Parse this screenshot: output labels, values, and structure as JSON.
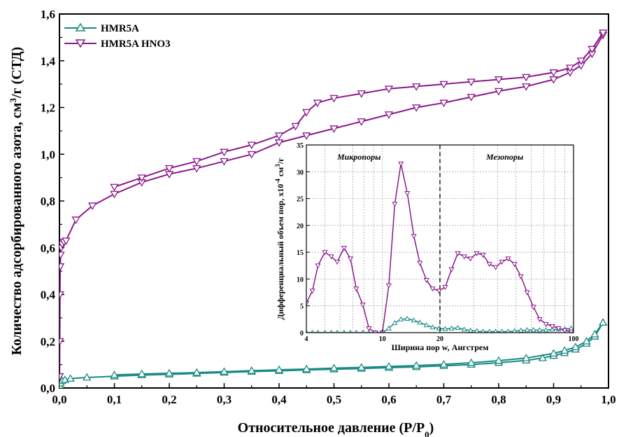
{
  "chart_data": [
    {
      "type": "line",
      "xlabel": "Относительное давление (P/P",
      "xlabel_sub": "0",
      "xlabel_end": ")",
      "ylabel": "Количество адсорбированного азота, см",
      "ylabel_sup": "3",
      "ylabel_end": "/г (СТД)",
      "xlim": [
        0,
        1.0
      ],
      "ylim": [
        0,
        1.6
      ],
      "xticks": [
        "0,0",
        "0,1",
        "0,2",
        "0,3",
        "0,4",
        "0,5",
        "0,6",
        "0,7",
        "0,8",
        "0,9",
        "1,0"
      ],
      "yticks": [
        "0,0",
        "0,2",
        "0,4",
        "0,6",
        "0,8",
        "1,0",
        "1,2",
        "1,4",
        "1,6"
      ],
      "legend_position": "top-left",
      "series": [
        {
          "name": "HMR5A",
          "color": "#1a8a84",
          "marker": "triangle-up",
          "branches": {
            "adsorption": [
              [
                0.0005,
                0.01
              ],
              [
                0.002,
                0.02
              ],
              [
                0.005,
                0.03
              ],
              [
                0.01,
                0.035
              ],
              [
                0.02,
                0.04
              ],
              [
                0.05,
                0.045
              ],
              [
                0.1,
                0.05
              ],
              [
                0.15,
                0.055
              ],
              [
                0.2,
                0.058
              ],
              [
                0.25,
                0.062
              ],
              [
                0.3,
                0.066
              ],
              [
                0.35,
                0.07
              ],
              [
                0.4,
                0.073
              ],
              [
                0.45,
                0.077
              ],
              [
                0.5,
                0.08
              ],
              [
                0.55,
                0.083
              ],
              [
                0.6,
                0.087
              ],
              [
                0.65,
                0.09
              ],
              [
                0.7,
                0.095
              ],
              [
                0.75,
                0.1
              ],
              [
                0.8,
                0.108
              ],
              [
                0.85,
                0.118
              ],
              [
                0.88,
                0.128
              ],
              [
                0.9,
                0.138
              ],
              [
                0.92,
                0.15
              ],
              [
                0.94,
                0.165
              ],
              [
                0.96,
                0.19
              ],
              [
                0.975,
                0.22
              ],
              [
                0.99,
                0.28
              ]
            ],
            "desorption": [
              [
                0.99,
                0.28
              ],
              [
                0.975,
                0.23
              ],
              [
                0.96,
                0.2
              ],
              [
                0.94,
                0.175
              ],
              [
                0.92,
                0.16
              ],
              [
                0.9,
                0.148
              ],
              [
                0.85,
                0.128
              ],
              [
                0.8,
                0.117
              ],
              [
                0.75,
                0.108
              ],
              [
                0.7,
                0.101
              ],
              [
                0.65,
                0.096
              ],
              [
                0.6,
                0.092
              ],
              [
                0.55,
                0.088
              ],
              [
                0.5,
                0.085
              ],
              [
                0.45,
                0.081
              ],
              [
                0.4,
                0.078
              ],
              [
                0.35,
                0.074
              ],
              [
                0.3,
                0.07
              ],
              [
                0.25,
                0.066
              ],
              [
                0.2,
                0.063
              ],
              [
                0.15,
                0.06
              ],
              [
                0.1,
                0.056
              ]
            ]
          }
        },
        {
          "name": "HMR5A HNO3",
          "color": "#8a1a8a",
          "marker": "triangle-down",
          "branches": {
            "adsorption": [
              [
                0.0003,
                0.05
              ],
              [
                0.0006,
                0.2
              ],
              [
                0.001,
                0.4
              ],
              [
                0.0015,
                0.52
              ],
              [
                0.002,
                0.57
              ],
              [
                0.003,
                0.6
              ],
              [
                0.005,
                0.615
              ],
              [
                0.008,
                0.625
              ],
              [
                0.012,
                0.63
              ],
              [
                0.03,
                0.72
              ],
              [
                0.06,
                0.78
              ],
              [
                0.1,
                0.83
              ],
              [
                0.15,
                0.88
              ],
              [
                0.2,
                0.915
              ],
              [
                0.25,
                0.94
              ],
              [
                0.3,
                0.97
              ],
              [
                0.35,
                1.0
              ],
              [
                0.4,
                1.05
              ],
              [
                0.45,
                1.08
              ],
              [
                0.5,
                1.11
              ],
              [
                0.55,
                1.14
              ],
              [
                0.6,
                1.17
              ],
              [
                0.65,
                1.2
              ],
              [
                0.7,
                1.22
              ],
              [
                0.75,
                1.245
              ],
              [
                0.8,
                1.27
              ],
              [
                0.85,
                1.29
              ],
              [
                0.9,
                1.32
              ],
              [
                0.93,
                1.35
              ],
              [
                0.95,
                1.38
              ],
              [
                0.97,
                1.43
              ],
              [
                0.99,
                1.51
              ]
            ],
            "desorption": [
              [
                0.99,
                1.52
              ],
              [
                0.97,
                1.45
              ],
              [
                0.95,
                1.4
              ],
              [
                0.93,
                1.37
              ],
              [
                0.9,
                1.35
              ],
              [
                0.85,
                1.33
              ],
              [
                0.8,
                1.32
              ],
              [
                0.75,
                1.31
              ],
              [
                0.7,
                1.3
              ],
              [
                0.65,
                1.29
              ],
              [
                0.6,
                1.28
              ],
              [
                0.55,
                1.26
              ],
              [
                0.5,
                1.24
              ],
              [
                0.47,
                1.22
              ],
              [
                0.45,
                1.18
              ],
              [
                0.43,
                1.12
              ],
              [
                0.4,
                1.08
              ],
              [
                0.35,
                1.04
              ],
              [
                0.3,
                1.01
              ],
              [
                0.25,
                0.97
              ],
              [
                0.2,
                0.94
              ],
              [
                0.15,
                0.9
              ],
              [
                0.1,
                0.86
              ]
            ]
          }
        }
      ]
    },
    {
      "type": "line",
      "inset": true,
      "xscale": "log",
      "xlabel": "Ширина пор w, Ангстрем",
      "ylabel": "Дифференциальный объем пор, x10",
      "ylabel_sup": "-4",
      "ylabel_mid": " см",
      "ylabel_sup2": "3",
      "ylabel_end": "/г",
      "xlim": [
        4,
        100
      ],
      "ylim": [
        0,
        35
      ],
      "xticks": [
        "4",
        "10",
        "20",
        "100"
      ],
      "yticks": [
        "0",
        "5",
        "10",
        "15",
        "20",
        "25",
        "30",
        "35"
      ],
      "grid": true,
      "regions": [
        {
          "label": "Микропоры"
        },
        {
          "label": "Мезопоры"
        }
      ],
      "divider_x": 20,
      "series": [
        {
          "name": "HMR5A",
          "color": "#1a8a84",
          "marker": "triangle-up",
          "x": [
            4,
            4.3,
            4.6,
            5,
            5.4,
            5.8,
            6.3,
            6.8,
            7.3,
            7.9,
            8.5,
            9.2,
            10,
            10.8,
            11.6,
            12.5,
            13.5,
            14.6,
            15.7,
            17,
            18.3,
            19.8,
            21.3,
            23,
            24.8,
            26.8,
            28.9,
            31.2,
            33.6,
            36.3,
            39.1,
            42.2,
            45.5,
            49.1,
            53,
            57.2,
            61.7,
            66.5,
            71.8,
            77.4,
            83.5,
            90.1,
            97.2
          ],
          "values": [
            0,
            0,
            0,
            0,
            0,
            0,
            0,
            0,
            0,
            0,
            0,
            0,
            0,
            0.8,
            1.8,
            2.5,
            2.6,
            2.3,
            1.9,
            1.4,
            1.0,
            0.8,
            0.7,
            0.8,
            0.9,
            0.6,
            0.4,
            0.3,
            0.2,
            0.2,
            0.2,
            0.2,
            0.2,
            0.3,
            0.4,
            0.5,
            0.5,
            0.5,
            0.5,
            0.6,
            0.6,
            0.7,
            0.8
          ]
        },
        {
          "name": "HMR5A HNO3",
          "color": "#8a1a8a",
          "marker": "triangle-down",
          "x": [
            4,
            4.3,
            4.6,
            5,
            5.4,
            5.8,
            6.3,
            6.8,
            7.3,
            7.9,
            8.5,
            9.2,
            10,
            10.8,
            11.6,
            12.5,
            13.5,
            14.6,
            15.7,
            17,
            18.3,
            19.8,
            21.3,
            23,
            24.8,
            26.8,
            28.9,
            31.2,
            33.6,
            36.3,
            39.1,
            42.2,
            45.5,
            49.1,
            53,
            57.2,
            61.7,
            66.5,
            71.8,
            77.4,
            83.5,
            90.1,
            97.2
          ],
          "values": [
            5.5,
            7.8,
            12.5,
            15,
            14.2,
            13.2,
            15.8,
            13.8,
            8.2,
            5.2,
            0.8,
            0,
            0,
            8.8,
            24,
            31.5,
            26,
            18,
            13,
            9.8,
            8.2,
            7.8,
            8.5,
            11.8,
            14.8,
            14.2,
            13.8,
            14.8,
            14.5,
            12.8,
            12.2,
            13.2,
            13.8,
            12.8,
            10.5,
            7.5,
            4.8,
            2.5,
            1.6,
            1.2,
            0.8,
            0.4,
            0.2
          ]
        }
      ]
    }
  ]
}
